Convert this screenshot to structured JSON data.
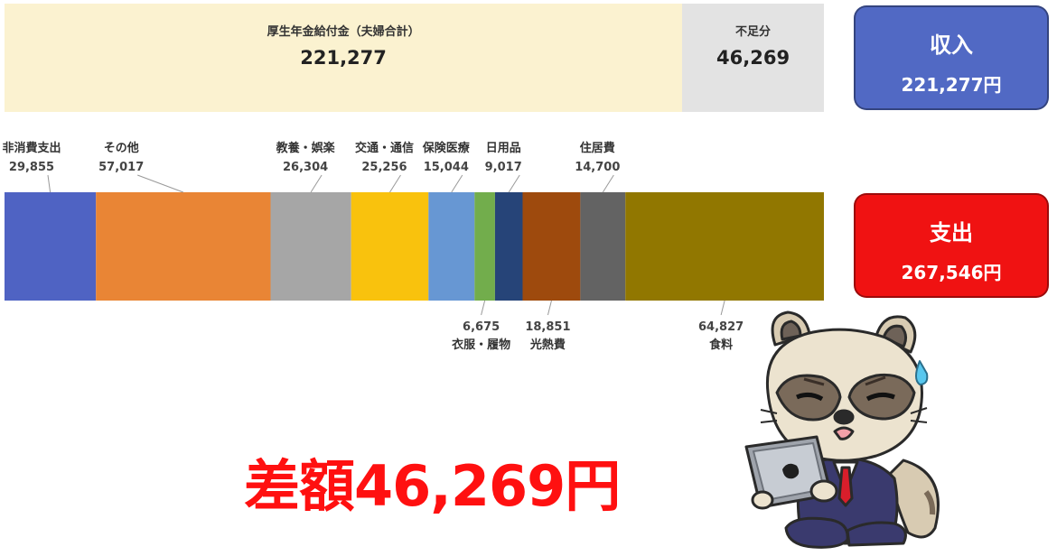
{
  "income_bar": {
    "pension": {
      "label": "厚生年金給付金（夫婦合計）",
      "value": "221,277",
      "color": "#fbf2d0"
    },
    "shortfall": {
      "label": "不足分",
      "value": "46,269",
      "color": "#e3e3e3"
    }
  },
  "income_card": {
    "title": "収入",
    "amount": "221,277円",
    "color": "#5169c4"
  },
  "expense_card": {
    "title": "支出",
    "amount": "267,546円",
    "color": "#f01212"
  },
  "difference": {
    "text": "差額46,269円",
    "color": "#ff1010"
  },
  "chart_data": [
    {
      "type": "bar",
      "orientation": "horizontal-stacked",
      "categories": [
        "厚生年金給付金（夫婦合計）",
        "不足分"
      ],
      "values": [
        221277,
        46269
      ],
      "total": 267546
    },
    {
      "type": "bar",
      "orientation": "horizontal-stacked",
      "total": 267546,
      "segments": [
        {
          "name": "非消費支出",
          "value": 29855,
          "display": "29,855",
          "color": "#4f63c3",
          "label_pos": "top"
        },
        {
          "name": "その他",
          "value": 57017,
          "display": "57,017",
          "color": "#e98535",
          "label_pos": "top"
        },
        {
          "name": "教養・娯楽",
          "value": 26304,
          "display": "26,304",
          "color": "#a6a6a6",
          "label_pos": "top"
        },
        {
          "name": "交通・通信",
          "value": 25256,
          "display": "25,256",
          "color": "#f9c20d",
          "label_pos": "top"
        },
        {
          "name": "保険医療",
          "value": 15044,
          "display": "15,044",
          "color": "#6797d3",
          "label_pos": "top"
        },
        {
          "name": "衣服・履物",
          "value": 6675,
          "display": "6,675",
          "color": "#72ad4c",
          "label_pos": "bottom"
        },
        {
          "name": "日用品",
          "value": 9017,
          "display": "9,017",
          "color": "#264478",
          "label_pos": "top"
        },
        {
          "name": "光熱費",
          "value": 18851,
          "display": "18,851",
          "color": "#9e4a0d",
          "label_pos": "bottom"
        },
        {
          "name": "住居費",
          "value": 14700,
          "display": "14,700",
          "color": "#636363",
          "label_pos": "top"
        },
        {
          "name": "食料",
          "value": 64827,
          "display": "64,827",
          "color": "#917700",
          "label_pos": "bottom"
        }
      ]
    }
  ]
}
